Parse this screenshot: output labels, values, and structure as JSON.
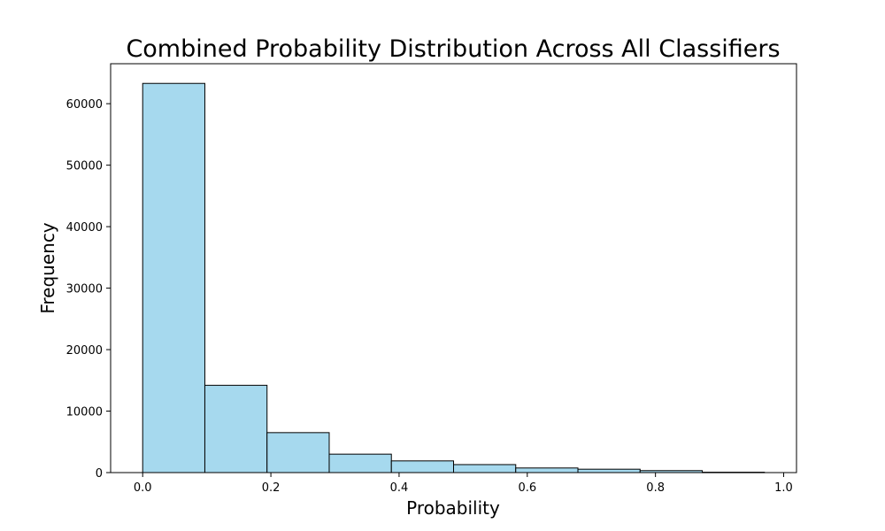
{
  "chart_data": {
    "type": "bar",
    "title": "Combined Probability Distribution Across All Classifiers",
    "xlabel": "Probability",
    "ylabel": "Frequency",
    "xlim": [
      -0.05,
      1.02
    ],
    "ylim": [
      0,
      66500
    ],
    "x_ticks": [
      0.0,
      0.2,
      0.4,
      0.6,
      0.8,
      1.0
    ],
    "x_tick_labels": [
      "0.0",
      "0.2",
      "0.4",
      "0.6",
      "0.8",
      "1.0"
    ],
    "y_ticks": [
      0,
      10000,
      20000,
      30000,
      40000,
      50000,
      60000
    ],
    "y_tick_labels": [
      "0",
      "10000",
      "20000",
      "30000",
      "40000",
      "50000",
      "60000"
    ],
    "bins": [
      {
        "start": 0.0,
        "end": 0.097,
        "value": 63300
      },
      {
        "start": 0.097,
        "end": 0.194,
        "value": 14200
      },
      {
        "start": 0.194,
        "end": 0.291,
        "value": 6500
      },
      {
        "start": 0.291,
        "end": 0.388,
        "value": 3000
      },
      {
        "start": 0.388,
        "end": 0.485,
        "value": 1900
      },
      {
        "start": 0.485,
        "end": 0.582,
        "value": 1300
      },
      {
        "start": 0.582,
        "end": 0.679,
        "value": 750
      },
      {
        "start": 0.679,
        "end": 0.776,
        "value": 550
      },
      {
        "start": 0.776,
        "end": 0.873,
        "value": 320
      },
      {
        "start": 0.873,
        "end": 0.97,
        "value": 60
      }
    ],
    "bar_color": "#a6d9ee",
    "edge_color": "#000000"
  }
}
